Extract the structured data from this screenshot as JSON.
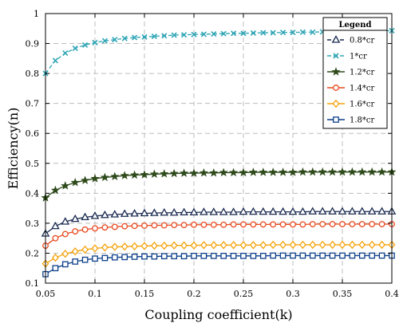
{
  "chart_data": {
    "type": "line",
    "title": "",
    "xlabel": "Coupling coefficient(k)",
    "ylabel": "Efficiency(n)",
    "xlim": [
      0.05,
      0.4
    ],
    "ylim": [
      0.1,
      1.0
    ],
    "x_ticks": [
      "0.05",
      "0.1",
      "0.15",
      "0.2",
      "0.25",
      "0.3",
      "0.35",
      "0.4"
    ],
    "y_ticks": [
      "0.1",
      "0.2",
      "0.3",
      "0.4",
      "0.5",
      "0.6",
      "0.7",
      "0.8",
      "0.9",
      "1"
    ],
    "grid": true,
    "legend_title": "Legend",
    "legend_position": "top-right",
    "x": [
      0.05,
      0.06,
      0.07,
      0.08,
      0.09,
      0.1,
      0.11,
      0.12,
      0.13,
      0.14,
      0.15,
      0.16,
      0.17,
      0.18,
      0.19,
      0.2,
      0.21,
      0.22,
      0.23,
      0.24,
      0.25,
      0.26,
      0.27,
      0.28,
      0.29,
      0.3,
      0.31,
      0.32,
      0.33,
      0.34,
      0.35,
      0.36,
      0.37,
      0.38,
      0.39,
      0.4
    ],
    "series": [
      {
        "name": "0.8*cr",
        "color": "#1a2a50",
        "marker": "triangle",
        "values": [
          0.265,
          0.29,
          0.305,
          0.314,
          0.32,
          0.324,
          0.327,
          0.329,
          0.331,
          0.332,
          0.333,
          0.334,
          0.335,
          0.335,
          0.336,
          0.336,
          0.337,
          0.337,
          0.337,
          0.337,
          0.338,
          0.338,
          0.338,
          0.338,
          0.338,
          0.338,
          0.338,
          0.339,
          0.339,
          0.339,
          0.339,
          0.339,
          0.339,
          0.339,
          0.339,
          0.339
        ]
      },
      {
        "name": "1*cr",
        "color": "#2fa5b5",
        "marker": "x",
        "values": [
          0.8,
          0.843,
          0.868,
          0.884,
          0.895,
          0.903,
          0.909,
          0.913,
          0.917,
          0.92,
          0.922,
          0.924,
          0.926,
          0.928,
          0.929,
          0.93,
          0.931,
          0.932,
          0.933,
          0.934,
          0.934,
          0.935,
          0.936,
          0.936,
          0.937,
          0.937,
          0.938,
          0.938,
          0.939,
          0.939,
          0.94,
          0.94,
          0.941,
          0.941,
          0.942,
          0.943
        ]
      },
      {
        "name": "1.2*cr",
        "color": "#2e4a1a",
        "marker": "star",
        "values": [
          0.385,
          0.41,
          0.425,
          0.436,
          0.443,
          0.449,
          0.453,
          0.456,
          0.459,
          0.461,
          0.462,
          0.464,
          0.465,
          0.466,
          0.467,
          0.467,
          0.468,
          0.468,
          0.469,
          0.469,
          0.469,
          0.47,
          0.47,
          0.47,
          0.47,
          0.47,
          0.471,
          0.471,
          0.471,
          0.471,
          0.471,
          0.471,
          0.471,
          0.471,
          0.471,
          0.471
        ]
      },
      {
        "name": "1.4*cr",
        "color": "#e8491e",
        "marker": "circle",
        "values": [
          0.225,
          0.25,
          0.264,
          0.273,
          0.279,
          0.283,
          0.286,
          0.288,
          0.29,
          0.291,
          0.292,
          0.293,
          0.293,
          0.294,
          0.294,
          0.295,
          0.295,
          0.295,
          0.295,
          0.296,
          0.296,
          0.296,
          0.296,
          0.296,
          0.296,
          0.296,
          0.296,
          0.297,
          0.297,
          0.297,
          0.297,
          0.297,
          0.297,
          0.297,
          0.297,
          0.297
        ]
      },
      {
        "name": "1.6*cr",
        "color": "#f5a20a",
        "marker": "diamond",
        "values": [
          0.165,
          0.185,
          0.198,
          0.206,
          0.212,
          0.216,
          0.219,
          0.221,
          0.222,
          0.223,
          0.224,
          0.225,
          0.225,
          0.226,
          0.226,
          0.226,
          0.227,
          0.227,
          0.227,
          0.227,
          0.227,
          0.227,
          0.227,
          0.228,
          0.228,
          0.228,
          0.228,
          0.228,
          0.228,
          0.228,
          0.228,
          0.228,
          0.228,
          0.228,
          0.228,
          0.228
        ]
      },
      {
        "name": "1.8*cr",
        "color": "#0d3f8a",
        "marker": "square",
        "values": [
          0.13,
          0.15,
          0.163,
          0.172,
          0.178,
          0.182,
          0.184,
          0.186,
          0.187,
          0.188,
          0.189,
          0.189,
          0.19,
          0.19,
          0.19,
          0.191,
          0.191,
          0.191,
          0.191,
          0.191,
          0.191,
          0.191,
          0.191,
          0.192,
          0.192,
          0.192,
          0.192,
          0.192,
          0.192,
          0.192,
          0.192,
          0.192,
          0.192,
          0.192,
          0.192,
          0.192
        ]
      }
    ]
  }
}
